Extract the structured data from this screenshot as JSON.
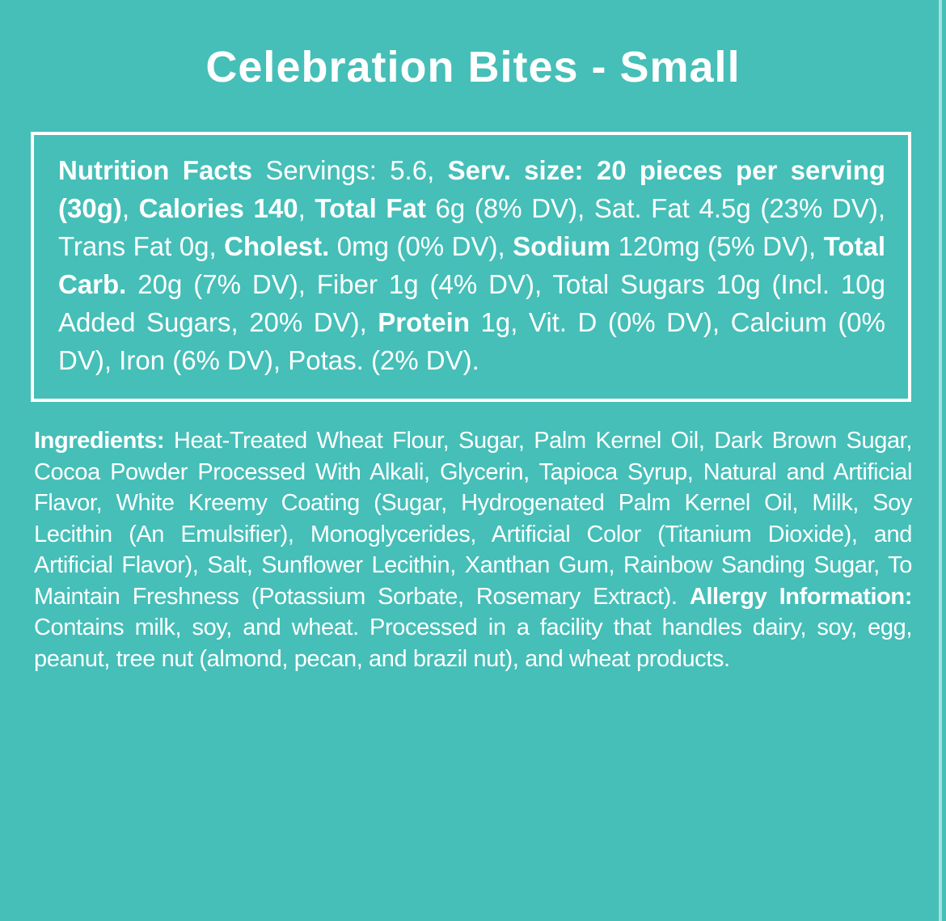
{
  "colors": {
    "background": "#45bfb8",
    "text": "#ffffff",
    "panel_border": "#ffffff",
    "edge_stripe": "#a5e1db"
  },
  "header": {
    "title": "Celebration Bites - Small"
  },
  "nutrition_panel": {
    "servings": "5.6",
    "serving_size": "20 pieces per serving (30g)",
    "calories": "140",
    "segments": [
      {
        "text": "Nutrition Facts",
        "bold": true
      },
      {
        "text": " Servings: 5.6, ",
        "bold": false
      },
      {
        "text": "Serv. size: 20 pieces per serving (30g)",
        "bold": true
      },
      {
        "text": ", ",
        "bold": false
      },
      {
        "text": "Calories 140",
        "bold": true
      },
      {
        "text": ", ",
        "bold": false
      },
      {
        "text": "Total Fat",
        "bold": true
      },
      {
        "text": " 6g (8% DV), Sat. Fat 4.5g (23% DV), Trans Fat 0g, ",
        "bold": false
      },
      {
        "text": "Cholest.",
        "bold": true
      },
      {
        "text": " 0mg (0% DV), ",
        "bold": false
      },
      {
        "text": "Sodium",
        "bold": true
      },
      {
        "text": " 120mg (5% DV), ",
        "bold": false
      },
      {
        "text": "Total Carb.",
        "bold": true
      },
      {
        "text": " 20g (7% DV), Fiber 1g (4% DV), Total Sugars 10g (Incl. 10g Added Sugars, 20% DV), ",
        "bold": false
      },
      {
        "text": "Protein",
        "bold": true
      },
      {
        "text": " 1g, Vit. D (0% DV), Calcium (0% DV), Iron (6% DV), Potas. (2% DV).",
        "bold": false
      }
    ]
  },
  "ingredients_section": {
    "segments": [
      {
        "text": "Ingredients:",
        "bold": true
      },
      {
        "text": " Heat-Treated Wheat Flour, Sugar, Palm Kernel Oil, Dark Brown Sugar, Cocoa Powder Processed With Alkali, Glycerin, Tapioca Syrup, Natural and Artificial Flavor, White Kreemy Coating (Sugar, Hydrogenated Palm Kernel Oil, Milk, Soy Lecithin (An Emulsifier), Monoglycerides, Artificial Color (Titanium Dioxide), and Artificial Flavor), Salt, Sunflower Lecithin, Xanthan Gum, Rainbow Sanding Sugar, To Maintain Freshness (Potassium Sorbate, Rosemary Extract). ",
        "bold": false
      },
      {
        "text": "Allergy Information:",
        "bold": true
      },
      {
        "text": " Contains milk, soy, and wheat. Processed in a facility that handles dairy, soy, egg, peanut, tree nut (almond, pecan, and brazil nut), and wheat products.",
        "bold": false
      }
    ]
  }
}
